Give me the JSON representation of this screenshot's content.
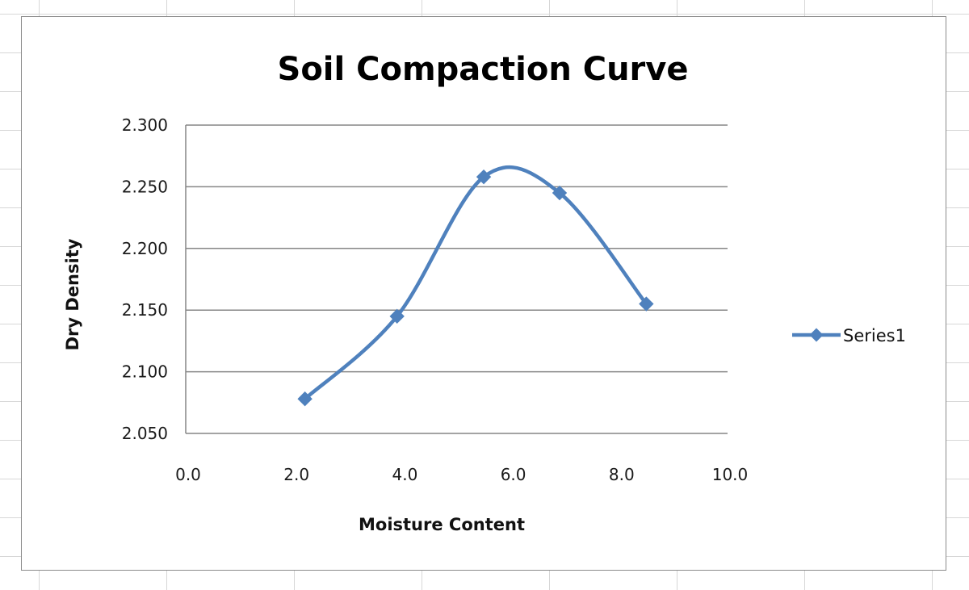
{
  "colors": {
    "series": "#4f81bd",
    "gridline": "#868686",
    "frame_border": "#8c8c8c",
    "sheet_gridline": "#d7d7d7"
  },
  "chart_data": {
    "type": "scatter",
    "style": "smooth line with diamond markers",
    "title": "Soil Compaction Curve",
    "xlabel": "Moisture Content",
    "ylabel": "Dry Density",
    "xlim": [
      0,
      10
    ],
    "ylim": [
      2.05,
      2.3
    ],
    "x_ticks": [
      "0.0",
      "2.0",
      "4.0",
      "6.0",
      "8.0",
      "10.0"
    ],
    "y_ticks": [
      "2.050",
      "2.100",
      "2.150",
      "2.200",
      "2.250",
      "2.300"
    ],
    "horizontal_grid": true,
    "vertical_grid": false,
    "legend_position": "right",
    "series": [
      {
        "name": "Series1",
        "x": [
          2.2,
          3.9,
          5.5,
          6.9,
          8.5
        ],
        "y": [
          2.078,
          2.145,
          2.258,
          2.245,
          2.155
        ]
      }
    ]
  }
}
